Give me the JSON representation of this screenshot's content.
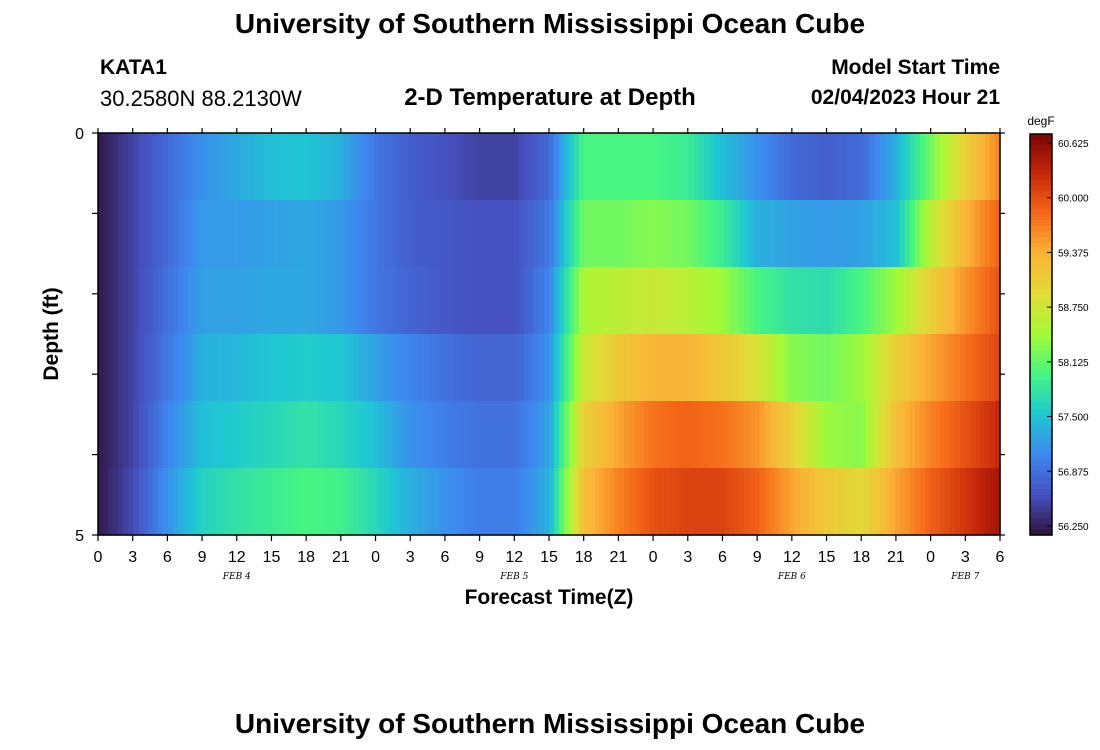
{
  "header": {
    "title": "University of Southern Mississippi Ocean Cube",
    "station_id": "KATA1",
    "coords": "30.2580N  88.2130W",
    "plot_title": "2-D Temperature at Depth",
    "start_label": "Model Start Time",
    "start_value": "02/04/2023 Hour 21"
  },
  "footer": {
    "title": "University of Southern Mississippi Ocean Cube"
  },
  "chart_data": {
    "type": "heatmap",
    "title": "2-D Temperature at Depth",
    "xlabel": "Forecast Time(Z)",
    "ylabel": "Depth (ft)",
    "x_tick_labels": [
      "0",
      "3",
      "6",
      "9",
      "12",
      "15",
      "18",
      "21",
      "0",
      "3",
      "6",
      "9",
      "12",
      "15",
      "18",
      "21",
      "0",
      "3",
      "6",
      "9",
      "12",
      "15",
      "18",
      "21",
      "0",
      "3",
      "6"
    ],
    "date_labels": [
      {
        "label": "FEB 4",
        "at_tick": 4
      },
      {
        "label": "FEB 5",
        "at_tick": 12
      },
      {
        "label": "FEB 6",
        "at_tick": 20
      },
      {
        "label": "FEB 7",
        "at_tick": 25
      }
    ],
    "x_range_hours": [
      0,
      78
    ],
    "y_tick_labels": [
      "0",
      "5"
    ],
    "depth_range_ft": [
      0,
      5
    ],
    "depth_layers": 5,
    "colorbar": {
      "unit": "degF",
      "min": 56.25,
      "max": 60.625,
      "tick_labels": [
        "60.625",
        "60.000",
        "59.375",
        "58.750",
        "58.125",
        "57.500",
        "56.875",
        "56.250"
      ]
    },
    "hours": [
      0,
      3,
      6,
      9,
      12,
      15,
      18,
      21,
      24,
      27,
      30,
      33,
      36,
      39,
      42,
      45,
      48,
      51,
      54,
      57,
      60,
      63,
      66,
      69,
      72,
      75,
      78
    ],
    "values_degF": [
      [
        56.3,
        56.6,
        56.9,
        57.2,
        57.35,
        57.5,
        57.55,
        57.4,
        57.0,
        56.8,
        56.7,
        56.6,
        56.6,
        56.9,
        58.0,
        58.0,
        58.0,
        57.9,
        57.5,
        57.2,
        56.9,
        56.8,
        56.9,
        57.4,
        58.2,
        59.0,
        59.6
      ],
      [
        56.3,
        56.6,
        56.9,
        57.25,
        57.25,
        57.3,
        57.35,
        57.25,
        57.0,
        56.8,
        56.75,
        56.7,
        56.7,
        57.0,
        58.2,
        58.2,
        58.3,
        58.2,
        57.9,
        57.4,
        57.3,
        57.25,
        57.3,
        57.5,
        58.6,
        59.3,
        59.8
      ],
      [
        56.3,
        56.6,
        56.95,
        57.3,
        57.3,
        57.35,
        57.35,
        57.25,
        57.0,
        56.85,
        56.75,
        56.7,
        56.7,
        57.1,
        58.5,
        58.6,
        58.7,
        58.6,
        58.4,
        58.0,
        57.8,
        57.75,
        58.0,
        58.4,
        59.0,
        59.5,
        59.9
      ],
      [
        56.3,
        56.6,
        57.0,
        57.4,
        57.45,
        57.55,
        57.6,
        57.55,
        57.3,
        57.1,
        56.95,
        56.85,
        56.85,
        57.2,
        58.7,
        59.1,
        59.3,
        59.3,
        59.1,
        58.8,
        58.3,
        58.2,
        58.4,
        59.0,
        59.4,
        59.7,
        60.0
      ],
      [
        56.3,
        56.6,
        57.1,
        57.5,
        57.6,
        57.7,
        57.8,
        57.7,
        57.5,
        57.2,
        57.05,
        56.95,
        56.95,
        57.3,
        59.0,
        59.4,
        59.7,
        59.8,
        59.7,
        59.5,
        59.0,
        58.4,
        58.3,
        59.2,
        59.6,
        59.9,
        60.2
      ],
      [
        56.3,
        56.65,
        57.2,
        57.65,
        57.8,
        57.9,
        58.0,
        57.95,
        57.7,
        57.4,
        57.2,
        57.05,
        57.05,
        57.4,
        59.2,
        59.6,
        59.9,
        60.0,
        60.0,
        59.8,
        59.4,
        59.1,
        58.9,
        59.4,
        59.8,
        60.1,
        60.4
      ]
    ]
  }
}
